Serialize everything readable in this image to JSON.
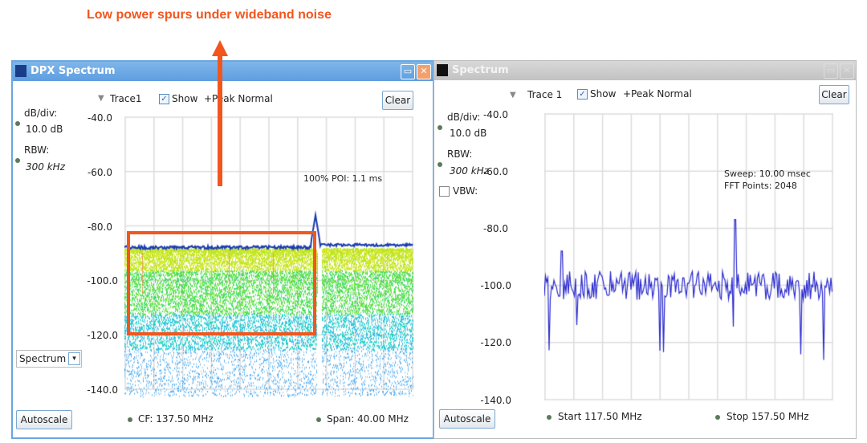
{
  "annotation": {
    "text": "Low power spurs under wideband noise",
    "color": "#f2561d"
  },
  "dpx": {
    "title": "DPX Spectrum",
    "trace_label": "Trace1",
    "show_label": "Show",
    "show_checked": true,
    "detector": "+Peak Normal",
    "clear": "Clear",
    "dbdiv_label": "dB/div:",
    "dbdiv_value": "10.0 dB",
    "rbw_label": "RBW:",
    "rbw_value": "300 kHz",
    "poi": "100% POI: 1.1 ms",
    "y_ticks": [
      "-40.0",
      "-60.0",
      "-80.0",
      "-100.0",
      "-120.0",
      "-140.0"
    ],
    "mode_select": "Spectrum",
    "autoscale": "Autoscale",
    "cf": "CF:  137.50 MHz",
    "span": "Span: 40.00 MHz"
  },
  "spectrum": {
    "title": "Spectrum",
    "trace_label": "Trace 1",
    "show_label": "Show",
    "show_checked": true,
    "detector": "+Peak Normal",
    "clear": "Clear",
    "dbdiv_label": "dB/div:",
    "dbdiv_value": "10.0 dB",
    "rbw_label": "RBW:",
    "rbw_value": "300 kHz",
    "vbw_label": "VBW:",
    "vbw_checked": false,
    "sweep": "Sweep: 10.00 msec",
    "fft": "FFT Points: 2048",
    "y_ticks": [
      "-40.0",
      "-60.0",
      "-80.0",
      "-100.0",
      "-120.0",
      "-140.0"
    ],
    "autoscale": "Autoscale",
    "start": "Start  117.50 MHz",
    "stop": "Stop  157.50 MHz",
    "trace_color": "#2a2ad0"
  }
}
